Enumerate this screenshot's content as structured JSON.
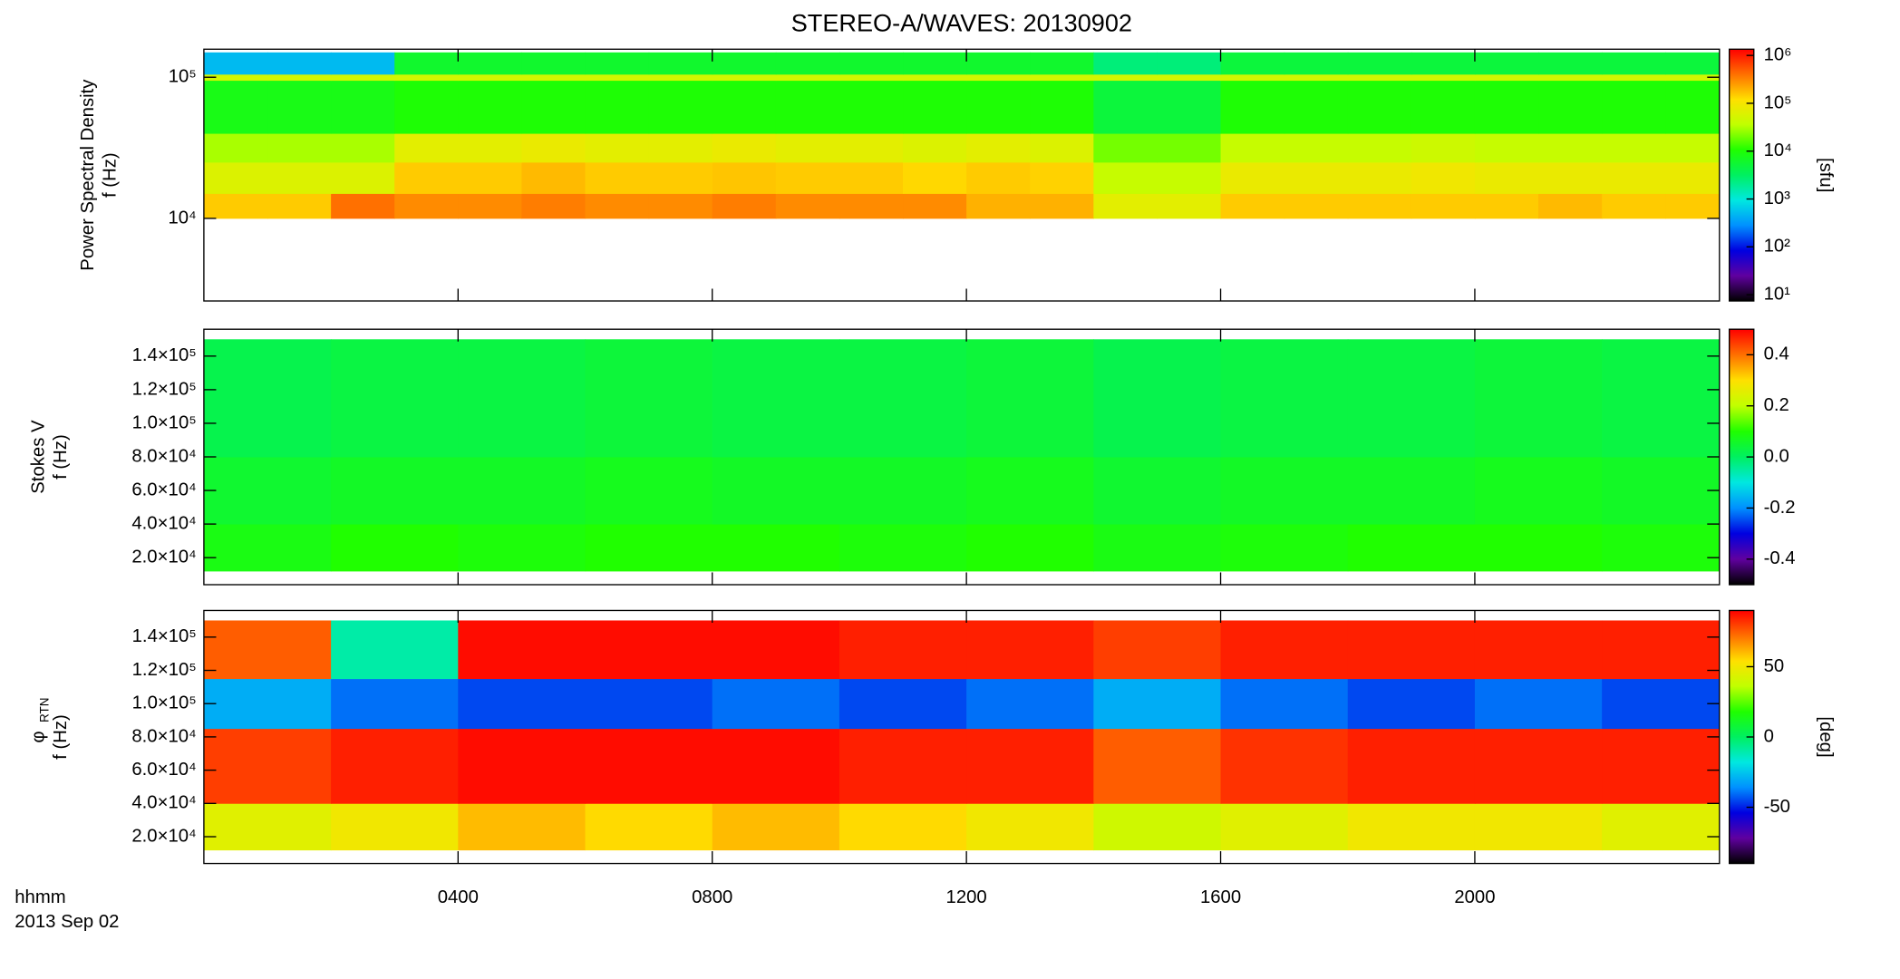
{
  "chart_data": [
    {
      "type": "heatmap",
      "title": "STEREO-A/WAVES: 20130902",
      "ylabel": [
        "Power Spectral Density",
        "f (Hz)"
      ],
      "ylog": true,
      "ylim": [
        2600,
        158000
      ],
      "yticks": [
        {
          "value": 10000,
          "label": "10⁴"
        },
        {
          "value": 100000,
          "label": "10⁵"
        }
      ],
      "xlim": [
        0,
        23.85
      ],
      "x": [
        0,
        1,
        2,
        3,
        4,
        5,
        6,
        7,
        8,
        9,
        10,
        11,
        12,
        13,
        14,
        15,
        16,
        17,
        18,
        19,
        20,
        21,
        22,
        23
      ],
      "y_edges": [
        10000,
        15000,
        25000,
        40000,
        95000,
        105000,
        150000
      ],
      "z": [
        [
          150000,
          150000,
          400000,
          300000,
          300000,
          350000,
          300000,
          300000,
          350000,
          300000,
          300000,
          300000,
          200000,
          200000,
          70000,
          70000,
          150000,
          150000,
          150000,
          150000,
          150000,
          180000,
          150000,
          150000
        ],
        [
          60000,
          60000,
          60000,
          150000,
          150000,
          180000,
          150000,
          150000,
          160000,
          150000,
          150000,
          130000,
          150000,
          140000,
          40000,
          40000,
          80000,
          80000,
          80000,
          90000,
          80000,
          80000,
          80000,
          80000
        ],
        [
          30000,
          30000,
          30000,
          70000,
          70000,
          80000,
          70000,
          70000,
          80000,
          70000,
          70000,
          60000,
          70000,
          60000,
          20000,
          20000,
          40000,
          40000,
          40000,
          45000,
          40000,
          40000,
          40000,
          40000
        ],
        [
          8000,
          8000,
          8000,
          10000,
          10000,
          10000,
          10000,
          10000,
          10000,
          10000,
          10000,
          10000,
          10000,
          10000,
          5000,
          5000,
          10000,
          10000,
          10000,
          10000,
          10000,
          10000,
          10000,
          10000
        ],
        [
          50000,
          50000,
          50000,
          50000,
          50000,
          50000,
          50000,
          50000,
          50000,
          50000,
          50000,
          50000,
          50000,
          50000,
          50000,
          50000,
          50000,
          50000,
          50000,
          50000,
          50000,
          50000,
          50000,
          50000
        ],
        [
          500,
          500,
          500,
          6000,
          6000,
          6000,
          6000,
          6000,
          6000,
          6000,
          6000,
          6000,
          6000,
          6000,
          2500,
          2500,
          5000,
          5000,
          5000,
          5000,
          5000,
          5000,
          5000,
          5000
        ]
      ],
      "zlog": true,
      "clim": [
        7.4,
        1350000
      ],
      "cticks": [
        {
          "value": 10,
          "label": "10¹"
        },
        {
          "value": 100,
          "label": "10²"
        },
        {
          "value": 1000,
          "label": "10³"
        },
        {
          "value": 10000,
          "label": "10⁴"
        },
        {
          "value": 100000,
          "label": "10⁵"
        },
        {
          "value": 1000000,
          "label": "10⁶"
        }
      ],
      "clabel": "[sfu]",
      "colormap": [
        "#000000",
        "#6000a0",
        "#0000e0",
        "#0090ff",
        "#00e8e0",
        "#00f060",
        "#20ff00",
        "#c0ff00",
        "#ffe000",
        "#ff7000",
        "#ff0000"
      ]
    },
    {
      "type": "heatmap",
      "ylabel": [
        "Stokes V",
        "f (Hz)"
      ],
      "ylog": false,
      "ylim": [
        3900,
        156000
      ],
      "yticks": [
        {
          "value": 20000,
          "label": "2.0×10⁴"
        },
        {
          "value": 40000,
          "label": "4.0×10⁴"
        },
        {
          "value": 60000,
          "label": "6.0×10⁴"
        },
        {
          "value": 80000,
          "label": "8.0×10⁴"
        },
        {
          "value": 100000,
          "label": "1.0×10⁵"
        },
        {
          "value": 120000,
          "label": "1.2×10⁵"
        },
        {
          "value": 140000,
          "label": "1.4×10⁵"
        }
      ],
      "xlim": [
        0,
        23.85
      ],
      "x": [
        0,
        2,
        4,
        6,
        8,
        10,
        12,
        14,
        16,
        18,
        20,
        22
      ],
      "y_edges": [
        12000,
        40000,
        80000,
        150000
      ],
      "z": [
        [
          0.08,
          0.1,
          0.09,
          0.1,
          0.1,
          0.09,
          0.1,
          0.08,
          0.09,
          0.1,
          0.1,
          0.09
        ],
        [
          0.05,
          0.06,
          0.06,
          0.07,
          0.06,
          0.06,
          0.07,
          0.05,
          0.06,
          0.06,
          0.07,
          0.06
        ],
        [
          0.02,
          0.03,
          0.03,
          0.04,
          0.03,
          0.03,
          0.04,
          0.02,
          0.03,
          0.03,
          0.04,
          0.03
        ]
      ],
      "zlog": false,
      "clim": [
        -0.5,
        0.5
      ],
      "cticks": [
        -0.4,
        -0.2,
        {
          "value": 0,
          "label": "0.0"
        },
        0.2,
        0.4
      ],
      "colormap": [
        "#000000",
        "#6000a0",
        "#0000e0",
        "#0090ff",
        "#00e8e0",
        "#00f060",
        "#20ff00",
        "#c0ff00",
        "#ffe000",
        "#ff7000",
        "#ff0000"
      ]
    },
    {
      "type": "heatmap",
      "ylabel": [
        "φ",
        "f (Hz)"
      ],
      "ylabel_sub": "RTN",
      "ylog": false,
      "ylim": [
        3900,
        156000
      ],
      "yticks": [
        {
          "value": 20000,
          "label": "2.0×10⁴"
        },
        {
          "value": 40000,
          "label": "4.0×10⁴"
        },
        {
          "value": 60000,
          "label": "6.0×10⁴"
        },
        {
          "value": 80000,
          "label": "8.0×10⁴"
        },
        {
          "value": 100000,
          "label": "1.0×10⁵"
        },
        {
          "value": 120000,
          "label": "1.2×10⁵"
        },
        {
          "value": 140000,
          "label": "1.4×10⁵"
        }
      ],
      "xlim": [
        0,
        23.85
      ],
      "xticks": [
        {
          "value": 4,
          "label": "0400"
        },
        {
          "value": 8,
          "label": "0800"
        },
        {
          "value": 12,
          "label": "1200"
        },
        {
          "value": 16,
          "label": "1600"
        },
        {
          "value": 20,
          "label": "2000"
        }
      ],
      "xlabel": "hhmm",
      "date": "2013 Sep 02",
      "x": [
        0,
        2,
        4,
        6,
        8,
        10,
        12,
        14,
        16,
        18,
        20,
        22
      ],
      "y_edges": [
        12000,
        40000,
        85000,
        115000,
        150000
      ],
      "z": [
        [
          45,
          50,
          60,
          55,
          60,
          55,
          50,
          40,
          45,
          50,
          50,
          45
        ],
        [
          80,
          85,
          88,
          88,
          88,
          85,
          85,
          75,
          82,
          85,
          85,
          85
        ],
        [
          -30,
          -40,
          -45,
          -45,
          -40,
          -45,
          -40,
          -30,
          -40,
          -45,
          -40,
          -45
        ],
        [
          75,
          -10,
          88,
          88,
          88,
          85,
          85,
          80,
          85,
          85,
          85,
          85
        ]
      ],
      "zlog": false,
      "clim": [
        -90,
        90
      ],
      "cticks": [
        -50,
        0,
        50
      ],
      "clabel": "[deg]",
      "colormap": [
        "#000000",
        "#6000a0",
        "#0000e0",
        "#0090ff",
        "#00e8e0",
        "#00f060",
        "#20ff00",
        "#c0ff00",
        "#ffe000",
        "#ff7000",
        "#ff0000"
      ]
    }
  ]
}
